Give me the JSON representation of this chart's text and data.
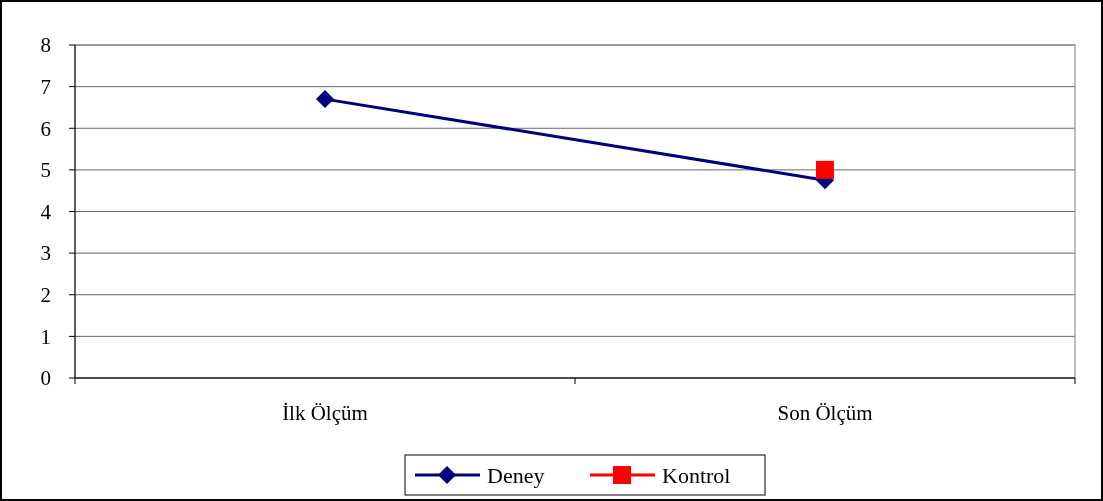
{
  "chart_data": {
    "type": "line",
    "categories": [
      "İlk Ölçüm",
      "Son Ölçüm"
    ],
    "series": [
      {
        "name": "Deney",
        "color": "#000080",
        "values": [
          6.7,
          4.75
        ],
        "marker": "diamond"
      },
      {
        "name": "Kontrol",
        "color": "#ff0000",
        "values": [
          null,
          5.0
        ],
        "marker": "square"
      }
    ],
    "ylim": [
      0,
      8
    ],
    "yticks": [
      0,
      1,
      2,
      3,
      4,
      5,
      6,
      7,
      8
    ],
    "grid": "y",
    "legend": "bottom",
    "line_style": "solid"
  }
}
